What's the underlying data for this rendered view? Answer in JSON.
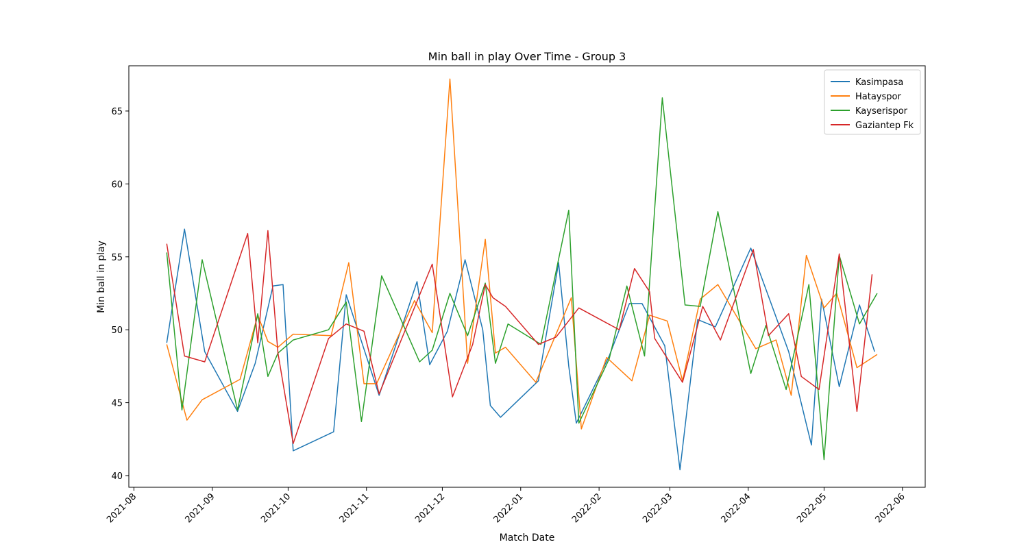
{
  "chart_data": {
    "type": "line",
    "title": "Min ball in play Over Time - Group 3",
    "xlabel": "Match Date",
    "ylabel": "Min ball in play",
    "x_axis_type": "date",
    "xlim": [
      "2021-07-30",
      "2022-06-10"
    ],
    "ylim": [
      39.2,
      68.1
    ],
    "x_ticks": [
      "2021-08",
      "2021-09",
      "2021-10",
      "2021-11",
      "2021-12",
      "2022-01",
      "2022-02",
      "2022-03",
      "2022-04",
      "2022-05",
      "2022-06"
    ],
    "x_tick_dates": [
      "2021-08-01",
      "2021-09-01",
      "2021-10-01",
      "2021-11-01",
      "2021-12-01",
      "2022-01-01",
      "2022-02-01",
      "2022-03-01",
      "2022-04-01",
      "2022-05-01",
      "2022-06-01"
    ],
    "y_ticks": [
      40,
      45,
      50,
      55,
      60,
      65
    ],
    "grid": false,
    "legend_position": "top-right",
    "series": [
      {
        "name": "Kasimpasa",
        "color": "#1f77b4",
        "points": [
          [
            "2021-08-14",
            49.1
          ],
          [
            "2021-08-21",
            56.9
          ],
          [
            "2021-08-29",
            48.5
          ],
          [
            "2021-09-11",
            44.4
          ],
          [
            "2021-09-18",
            47.7
          ],
          [
            "2021-09-25",
            53.0
          ],
          [
            "2021-09-29",
            53.1
          ],
          [
            "2021-10-03",
            41.7
          ],
          [
            "2021-10-19",
            43.0
          ],
          [
            "2021-10-24",
            52.4
          ],
          [
            "2021-11-06",
            45.5
          ],
          [
            "2021-11-21",
            53.3
          ],
          [
            "2021-11-26",
            47.6
          ],
          [
            "2021-12-03",
            49.9
          ],
          [
            "2021-12-10",
            54.8
          ],
          [
            "2021-12-17",
            50.0
          ],
          [
            "2021-12-20",
            44.8
          ],
          [
            "2021-12-24",
            44.0
          ],
          [
            "2022-01-08",
            46.5
          ],
          [
            "2022-01-16",
            54.6
          ],
          [
            "2022-01-20",
            47.5
          ],
          [
            "2022-01-23",
            43.6
          ],
          [
            "2022-02-05",
            48.2
          ],
          [
            "2022-02-13",
            51.8
          ],
          [
            "2022-02-18",
            51.8
          ],
          [
            "2022-02-27",
            48.9
          ],
          [
            "2022-03-05",
            40.4
          ],
          [
            "2022-03-12",
            50.7
          ],
          [
            "2022-03-19",
            50.2
          ],
          [
            "2022-04-02",
            55.6
          ],
          [
            "2022-04-09",
            52.3
          ],
          [
            "2022-04-17",
            48.5
          ],
          [
            "2022-04-26",
            42.1
          ],
          [
            "2022-04-30",
            52.1
          ],
          [
            "2022-05-07",
            46.1
          ],
          [
            "2022-05-15",
            51.7
          ],
          [
            "2022-05-21",
            48.5
          ]
        ]
      },
      {
        "name": "Hatayspor",
        "color": "#ff7f0e",
        "points": [
          [
            "2021-08-14",
            49.0
          ],
          [
            "2021-08-22",
            43.8
          ],
          [
            "2021-08-28",
            45.2
          ],
          [
            "2021-09-12",
            46.6
          ],
          [
            "2021-09-19",
            51.0
          ],
          [
            "2021-09-23",
            49.2
          ],
          [
            "2021-09-27",
            48.8
          ],
          [
            "2021-10-03",
            49.7
          ],
          [
            "2021-10-18",
            49.6
          ],
          [
            "2021-10-25",
            54.6
          ],
          [
            "2021-10-31",
            46.3
          ],
          [
            "2021-11-05",
            46.3
          ],
          [
            "2021-11-20",
            52.0
          ],
          [
            "2021-11-27",
            49.8
          ],
          [
            "2021-12-04",
            67.2
          ],
          [
            "2021-12-11",
            47.7
          ],
          [
            "2021-12-18",
            56.2
          ],
          [
            "2021-12-22",
            48.4
          ],
          [
            "2021-12-26",
            48.8
          ],
          [
            "2022-01-07",
            46.4
          ],
          [
            "2022-01-21",
            52.2
          ],
          [
            "2022-01-25",
            43.2
          ],
          [
            "2022-02-04",
            48.1
          ],
          [
            "2022-02-14",
            46.5
          ],
          [
            "2022-02-21",
            51.0
          ],
          [
            "2022-02-28",
            50.6
          ],
          [
            "2022-03-06",
            46.5
          ],
          [
            "2022-03-13",
            52.1
          ],
          [
            "2022-03-20",
            53.1
          ],
          [
            "2022-04-04",
            48.7
          ],
          [
            "2022-04-12",
            49.3
          ],
          [
            "2022-04-18",
            45.5
          ],
          [
            "2022-04-24",
            55.1
          ],
          [
            "2022-05-01",
            51.5
          ],
          [
            "2022-05-06",
            52.5
          ],
          [
            "2022-05-14",
            47.4
          ],
          [
            "2022-05-22",
            48.3
          ]
        ]
      },
      {
        "name": "Kayserispor",
        "color": "#2ca02c",
        "points": [
          [
            "2021-08-14",
            55.3
          ],
          [
            "2021-08-20",
            44.5
          ],
          [
            "2021-08-28",
            54.8
          ],
          [
            "2021-09-11",
            44.5
          ],
          [
            "2021-09-19",
            51.1
          ],
          [
            "2021-09-23",
            46.8
          ],
          [
            "2021-09-27",
            48.4
          ],
          [
            "2021-10-03",
            49.3
          ],
          [
            "2021-10-17",
            50.0
          ],
          [
            "2021-10-24",
            51.9
          ],
          [
            "2021-10-30",
            43.7
          ],
          [
            "2021-11-07",
            53.7
          ],
          [
            "2021-11-22",
            47.8
          ],
          [
            "2021-11-27",
            48.6
          ],
          [
            "2021-12-04",
            52.5
          ],
          [
            "2021-12-11",
            49.6
          ],
          [
            "2021-12-18",
            53.2
          ],
          [
            "2021-12-22",
            47.7
          ],
          [
            "2021-12-27",
            50.4
          ],
          [
            "2022-01-09",
            49.0
          ],
          [
            "2022-01-20",
            58.2
          ],
          [
            "2022-01-24",
            43.6
          ],
          [
            "2022-02-05",
            48.0
          ],
          [
            "2022-02-12",
            53.0
          ],
          [
            "2022-02-19",
            48.2
          ],
          [
            "2022-02-26",
            65.9
          ],
          [
            "2022-03-07",
            51.7
          ],
          [
            "2022-03-13",
            51.6
          ],
          [
            "2022-03-20",
            58.1
          ],
          [
            "2022-04-02",
            47.0
          ],
          [
            "2022-04-08",
            50.3
          ],
          [
            "2022-04-16",
            45.9
          ],
          [
            "2022-04-25",
            53.1
          ],
          [
            "2022-05-01",
            41.1
          ],
          [
            "2022-05-07",
            55.1
          ],
          [
            "2022-05-15",
            50.4
          ],
          [
            "2022-05-22",
            52.5
          ]
        ]
      },
      {
        "name": "Gaziantep Fk",
        "color": "#d62728",
        "points": [
          [
            "2021-08-14",
            55.9
          ],
          [
            "2021-08-21",
            48.2
          ],
          [
            "2021-08-29",
            47.8
          ],
          [
            "2021-09-15",
            56.6
          ],
          [
            "2021-09-19",
            49.1
          ],
          [
            "2021-09-23",
            56.8
          ],
          [
            "2021-09-27",
            48.4
          ],
          [
            "2021-10-03",
            42.2
          ],
          [
            "2021-10-17",
            49.4
          ],
          [
            "2021-10-24",
            50.4
          ],
          [
            "2021-10-31",
            49.9
          ],
          [
            "2021-11-06",
            45.6
          ],
          [
            "2021-11-27",
            54.5
          ],
          [
            "2021-12-05",
            45.4
          ],
          [
            "2021-12-13",
            49.0
          ],
          [
            "2021-12-18",
            53.1
          ],
          [
            "2021-12-21",
            52.2
          ],
          [
            "2021-12-26",
            51.6
          ],
          [
            "2022-01-08",
            49.0
          ],
          [
            "2022-01-15",
            49.5
          ],
          [
            "2022-01-24",
            51.5
          ],
          [
            "2022-02-09",
            50.0
          ],
          [
            "2022-02-15",
            54.2
          ],
          [
            "2022-02-21",
            52.6
          ],
          [
            "2022-02-23",
            49.4
          ],
          [
            "2022-03-06",
            46.4
          ],
          [
            "2022-03-14",
            51.6
          ],
          [
            "2022-03-21",
            49.3
          ],
          [
            "2022-04-03",
            55.5
          ],
          [
            "2022-04-09",
            49.6
          ],
          [
            "2022-04-17",
            51.1
          ],
          [
            "2022-04-22",
            46.8
          ],
          [
            "2022-04-29",
            45.9
          ],
          [
            "2022-05-07",
            55.2
          ],
          [
            "2022-05-14",
            44.4
          ],
          [
            "2022-05-20",
            53.8
          ]
        ]
      }
    ]
  }
}
